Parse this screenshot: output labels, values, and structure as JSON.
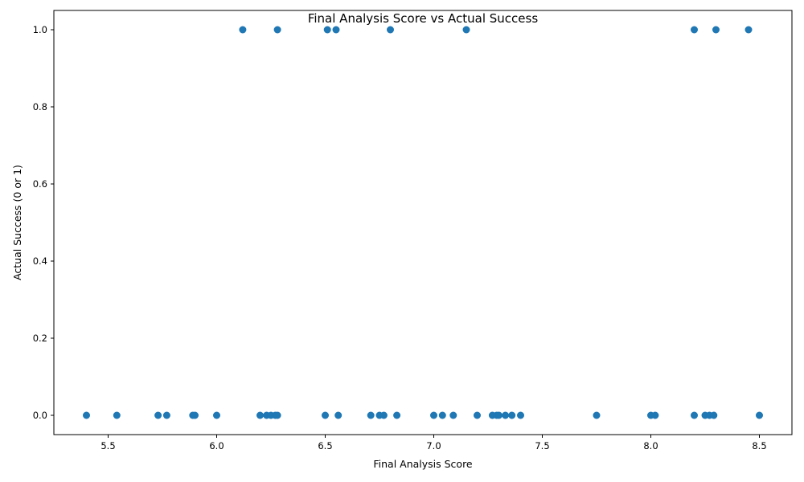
{
  "chart_data": {
    "type": "scatter",
    "title": "Final Analysis Score vs Actual Success",
    "xlabel": "Final Analysis Score",
    "ylabel": "Actual Success (0 or 1)",
    "xlim": [
      5.25,
      8.65
    ],
    "ylim": [
      -0.05,
      1.05
    ],
    "xticks": [
      5.5,
      6.0,
      6.5,
      7.0,
      7.5,
      8.0,
      8.5
    ],
    "xtick_labels": [
      "5.5",
      "6.0",
      "6.5",
      "7.0",
      "7.5",
      "8.0",
      "8.5"
    ],
    "yticks": [
      0.0,
      0.2,
      0.4,
      0.6,
      0.8,
      1.0
    ],
    "ytick_labels": [
      "0.0",
      "0.2",
      "0.4",
      "0.6",
      "0.8",
      "1.0"
    ],
    "grid": false,
    "marker_color": "#1f77b4",
    "series": [
      {
        "points": [
          {
            "x": 6.12,
            "y": 1
          },
          {
            "x": 6.28,
            "y": 1
          },
          {
            "x": 6.51,
            "y": 1
          },
          {
            "x": 6.55,
            "y": 1
          },
          {
            "x": 6.8,
            "y": 1
          },
          {
            "x": 7.15,
            "y": 1
          },
          {
            "x": 8.2,
            "y": 1
          },
          {
            "x": 8.3,
            "y": 1
          },
          {
            "x": 8.45,
            "y": 1
          },
          {
            "x": 5.4,
            "y": 0
          },
          {
            "x": 5.54,
            "y": 0
          },
          {
            "x": 5.73,
            "y": 0
          },
          {
            "x": 5.77,
            "y": 0
          },
          {
            "x": 5.89,
            "y": 0
          },
          {
            "x": 5.9,
            "y": 0
          },
          {
            "x": 6.0,
            "y": 0
          },
          {
            "x": 6.2,
            "y": 0
          },
          {
            "x": 6.23,
            "y": 0
          },
          {
            "x": 6.25,
            "y": 0
          },
          {
            "x": 6.27,
            "y": 0
          },
          {
            "x": 6.28,
            "y": 0
          },
          {
            "x": 6.5,
            "y": 0
          },
          {
            "x": 6.56,
            "y": 0
          },
          {
            "x": 6.71,
            "y": 0
          },
          {
            "x": 6.75,
            "y": 0
          },
          {
            "x": 6.77,
            "y": 0
          },
          {
            "x": 6.83,
            "y": 0
          },
          {
            "x": 7.0,
            "y": 0
          },
          {
            "x": 7.04,
            "y": 0
          },
          {
            "x": 7.09,
            "y": 0
          },
          {
            "x": 7.2,
            "y": 0
          },
          {
            "x": 7.27,
            "y": 0
          },
          {
            "x": 7.29,
            "y": 0
          },
          {
            "x": 7.3,
            "y": 0
          },
          {
            "x": 7.33,
            "y": 0
          },
          {
            "x": 7.36,
            "y": 0
          },
          {
            "x": 7.4,
            "y": 0
          },
          {
            "x": 7.75,
            "y": 0
          },
          {
            "x": 8.0,
            "y": 0
          },
          {
            "x": 8.02,
            "y": 0
          },
          {
            "x": 8.2,
            "y": 0
          },
          {
            "x": 8.25,
            "y": 0
          },
          {
            "x": 8.27,
            "y": 0
          },
          {
            "x": 8.29,
            "y": 0
          },
          {
            "x": 8.5,
            "y": 0
          }
        ]
      }
    ]
  }
}
